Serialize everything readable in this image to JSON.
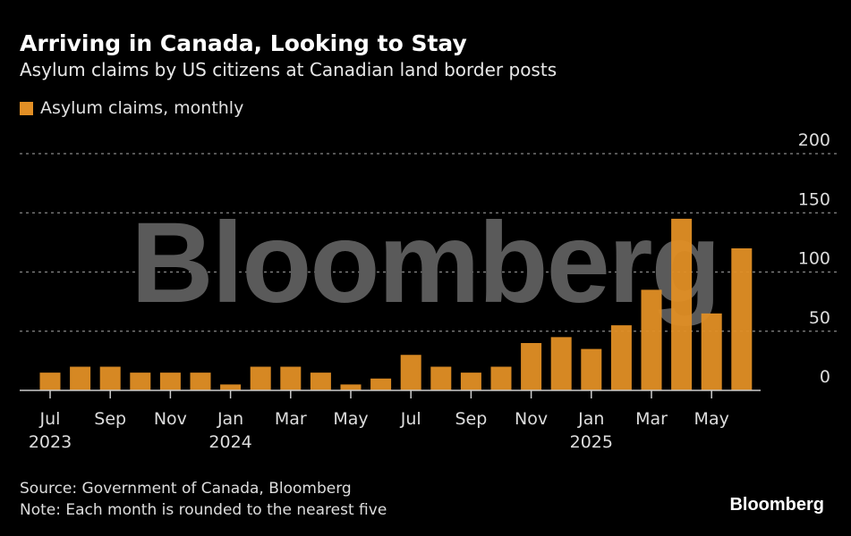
{
  "header": {
    "title": "Arriving in Canada, Looking to Stay",
    "subtitle": "Asylum claims by US citizens at Canadian land border posts"
  },
  "footer": {
    "source": "Source: Government of Canada, Bloomberg",
    "note": "Note: Each month is rounded to the nearest five",
    "brand": "Bloomberg"
  },
  "watermark": "Bloomberg",
  "colors": {
    "bar": "#e28f25"
  },
  "chart_data": {
    "type": "bar",
    "title": "Arriving in Canada, Looking to Stay",
    "legend": [
      "Asylum claims, monthly"
    ],
    "legend_position": "top-left",
    "categories": [
      "Jul 2023",
      "Aug 2023",
      "Sep 2023",
      "Oct 2023",
      "Nov 2023",
      "Dec 2023",
      "Jan 2024",
      "Feb 2024",
      "Mar 2024",
      "Apr 2024",
      "May 2024",
      "Jun 2024",
      "Jul 2024",
      "Aug 2024",
      "Sep 2024",
      "Oct 2024",
      "Nov 2024",
      "Dec 2024",
      "Jan 2025",
      "Feb 2025",
      "Mar 2025",
      "Apr 2025",
      "May 2025",
      "Jun 2025"
    ],
    "values": [
      15,
      20,
      20,
      15,
      15,
      15,
      5,
      20,
      20,
      15,
      5,
      10,
      30,
      20,
      15,
      20,
      40,
      45,
      35,
      55,
      85,
      145,
      65,
      120
    ],
    "ylim": [
      0,
      200
    ],
    "yticks": [
      "0",
      "50",
      "100",
      "150",
      "200"
    ],
    "xticks": [
      {
        "label": "Jul",
        "year": "2023",
        "index": 0
      },
      {
        "label": "Sep",
        "year": "",
        "index": 2
      },
      {
        "label": "Nov",
        "year": "",
        "index": 4
      },
      {
        "label": "Jan",
        "year": "2024",
        "index": 6
      },
      {
        "label": "Mar",
        "year": "",
        "index": 8
      },
      {
        "label": "May",
        "year": "",
        "index": 10
      },
      {
        "label": "Jul",
        "year": "",
        "index": 12
      },
      {
        "label": "Sep",
        "year": "",
        "index": 14
      },
      {
        "label": "Nov",
        "year": "",
        "index": 16
      },
      {
        "label": "Jan",
        "year": "2025",
        "index": 18
      },
      {
        "label": "Mar",
        "year": "",
        "index": 20
      },
      {
        "label": "May",
        "year": "",
        "index": 22
      }
    ],
    "grid": true
  }
}
